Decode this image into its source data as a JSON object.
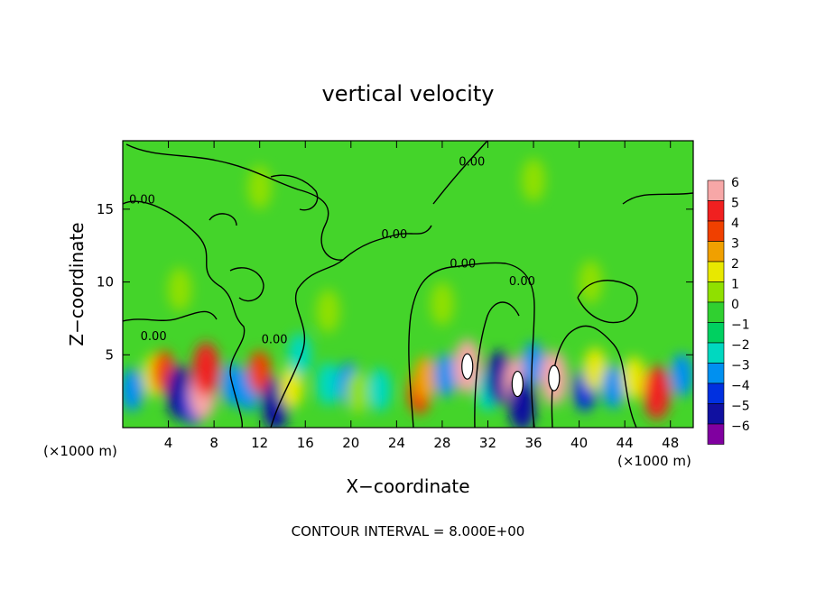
{
  "chart_data": {
    "type": "heatmap",
    "title": "vertical velocity",
    "xlabel": "X−coordinate",
    "ylabel": "Z−coordinate",
    "x_unit_left": "(×1000 m)",
    "x_unit_right": "(×1000 m)",
    "xlim": [
      0,
      50
    ],
    "ylim": [
      0,
      19.7
    ],
    "x_ticks": [
      4,
      8,
      12,
      16,
      20,
      24,
      28,
      32,
      36,
      40,
      44,
      48
    ],
    "x_tick_labels": [
      "4",
      "8",
      "12",
      "16",
      "20",
      "24",
      "28",
      "32",
      "36",
      "40",
      "44",
      "48"
    ],
    "y_ticks": [
      5,
      10,
      15
    ],
    "y_tick_labels": [
      "5",
      "10",
      "15"
    ],
    "footer": "CONTOUR INTERVAL = 8.000E+00",
    "contour_labels": [
      {
        "text": "0.00",
        "x": 1.7,
        "y": 15.4
      },
      {
        "text": "0.00",
        "x": 2.7,
        "y": 6.0
      },
      {
        "text": "0.00",
        "x": 13.3,
        "y": 5.8
      },
      {
        "text": "0.00",
        "x": 23.8,
        "y": 13.0
      },
      {
        "text": "0.00",
        "x": 29.8,
        "y": 11.0
      },
      {
        "text": "0.00",
        "x": 30.6,
        "y": 18.0
      },
      {
        "text": "0.00",
        "x": 35.0,
        "y": 9.8
      }
    ],
    "colorbar": {
      "levels": [
        6,
        5,
        4,
        3,
        2,
        1,
        0,
        -1,
        -2,
        -3,
        -4,
        -5,
        -6
      ],
      "labels": [
        "6",
        "5",
        "4",
        "3",
        "2",
        "1",
        "0",
        "−1",
        "−2",
        "−3",
        "−4",
        "−5",
        "−6"
      ],
      "colors": [
        "#f7a7a7",
        "#f02020",
        "#f04000",
        "#f0a000",
        "#e8e800",
        "#90e000",
        "#30d030",
        "#00d060",
        "#00d8c0",
        "#0090f0",
        "#0030e0",
        "#1010a0",
        "#8000a0"
      ]
    },
    "cells": [
      {
        "x": 0.8,
        "z": 2.6,
        "w": -3
      },
      {
        "x": 2.8,
        "z": 3.6,
        "w": 2
      },
      {
        "x": 3.6,
        "z": 3.8,
        "w": 4
      },
      {
        "x": 5.0,
        "z": 2.4,
        "w": -5
      },
      {
        "x": 6.2,
        "z": 1.6,
        "w": -4
      },
      {
        "x": 7.0,
        "z": 2.4,
        "w": 6
      },
      {
        "x": 7.3,
        "z": 4.0,
        "w": 5
      },
      {
        "x": 9.6,
        "z": 3.0,
        "w": -3
      },
      {
        "x": 11.0,
        "z": 2.6,
        "w": -3
      },
      {
        "x": 12.0,
        "z": 3.8,
        "w": 4
      },
      {
        "x": 13.4,
        "z": 1.6,
        "w": -5
      },
      {
        "x": 14.8,
        "z": 2.8,
        "w": 2
      },
      {
        "x": 15.5,
        "z": 5.0,
        "w": -2
      },
      {
        "x": 18.0,
        "z": 3.0,
        "w": -2
      },
      {
        "x": 19.8,
        "z": 3.0,
        "w": -3
      },
      {
        "x": 20.6,
        "z": 2.4,
        "w": 1
      },
      {
        "x": 22.5,
        "z": 2.6,
        "w": -2
      },
      {
        "x": 26.0,
        "z": 2.4,
        "w": 4
      },
      {
        "x": 26.5,
        "z": 3.4,
        "w": 3
      },
      {
        "x": 28.3,
        "z": 3.6,
        "w": -3
      },
      {
        "x": 30.2,
        "z": 4.2,
        "w": 6
      },
      {
        "x": 32.0,
        "z": 2.6,
        "w": -2
      },
      {
        "x": 33.0,
        "z": 3.4,
        "w": -5
      },
      {
        "x": 34.6,
        "z": 3.0,
        "w": 6
      },
      {
        "x": 35.0,
        "z": 1.6,
        "w": -5
      },
      {
        "x": 36.0,
        "z": 4.4,
        "w": -3
      },
      {
        "x": 37.8,
        "z": 3.4,
        "w": 6
      },
      {
        "x": 40.5,
        "z": 2.6,
        "w": -4
      },
      {
        "x": 41.4,
        "z": 4.0,
        "w": 2
      },
      {
        "x": 43.0,
        "z": 2.8,
        "w": -3
      },
      {
        "x": 44.8,
        "z": 3.4,
        "w": 2
      },
      {
        "x": 46.8,
        "z": 2.4,
        "w": 5
      },
      {
        "x": 49.0,
        "z": 3.6,
        "w": -3
      },
      {
        "x": 5.0,
        "z": 9.5,
        "w": 1
      },
      {
        "x": 18.0,
        "z": 8.0,
        "w": 1
      },
      {
        "x": 28.0,
        "z": 8.5,
        "w": 1
      },
      {
        "x": 41.0,
        "z": 10.0,
        "w": 1
      },
      {
        "x": 12.0,
        "z": 16.5,
        "w": 1
      },
      {
        "x": 36.0,
        "z": 17.0,
        "w": 1
      }
    ]
  }
}
